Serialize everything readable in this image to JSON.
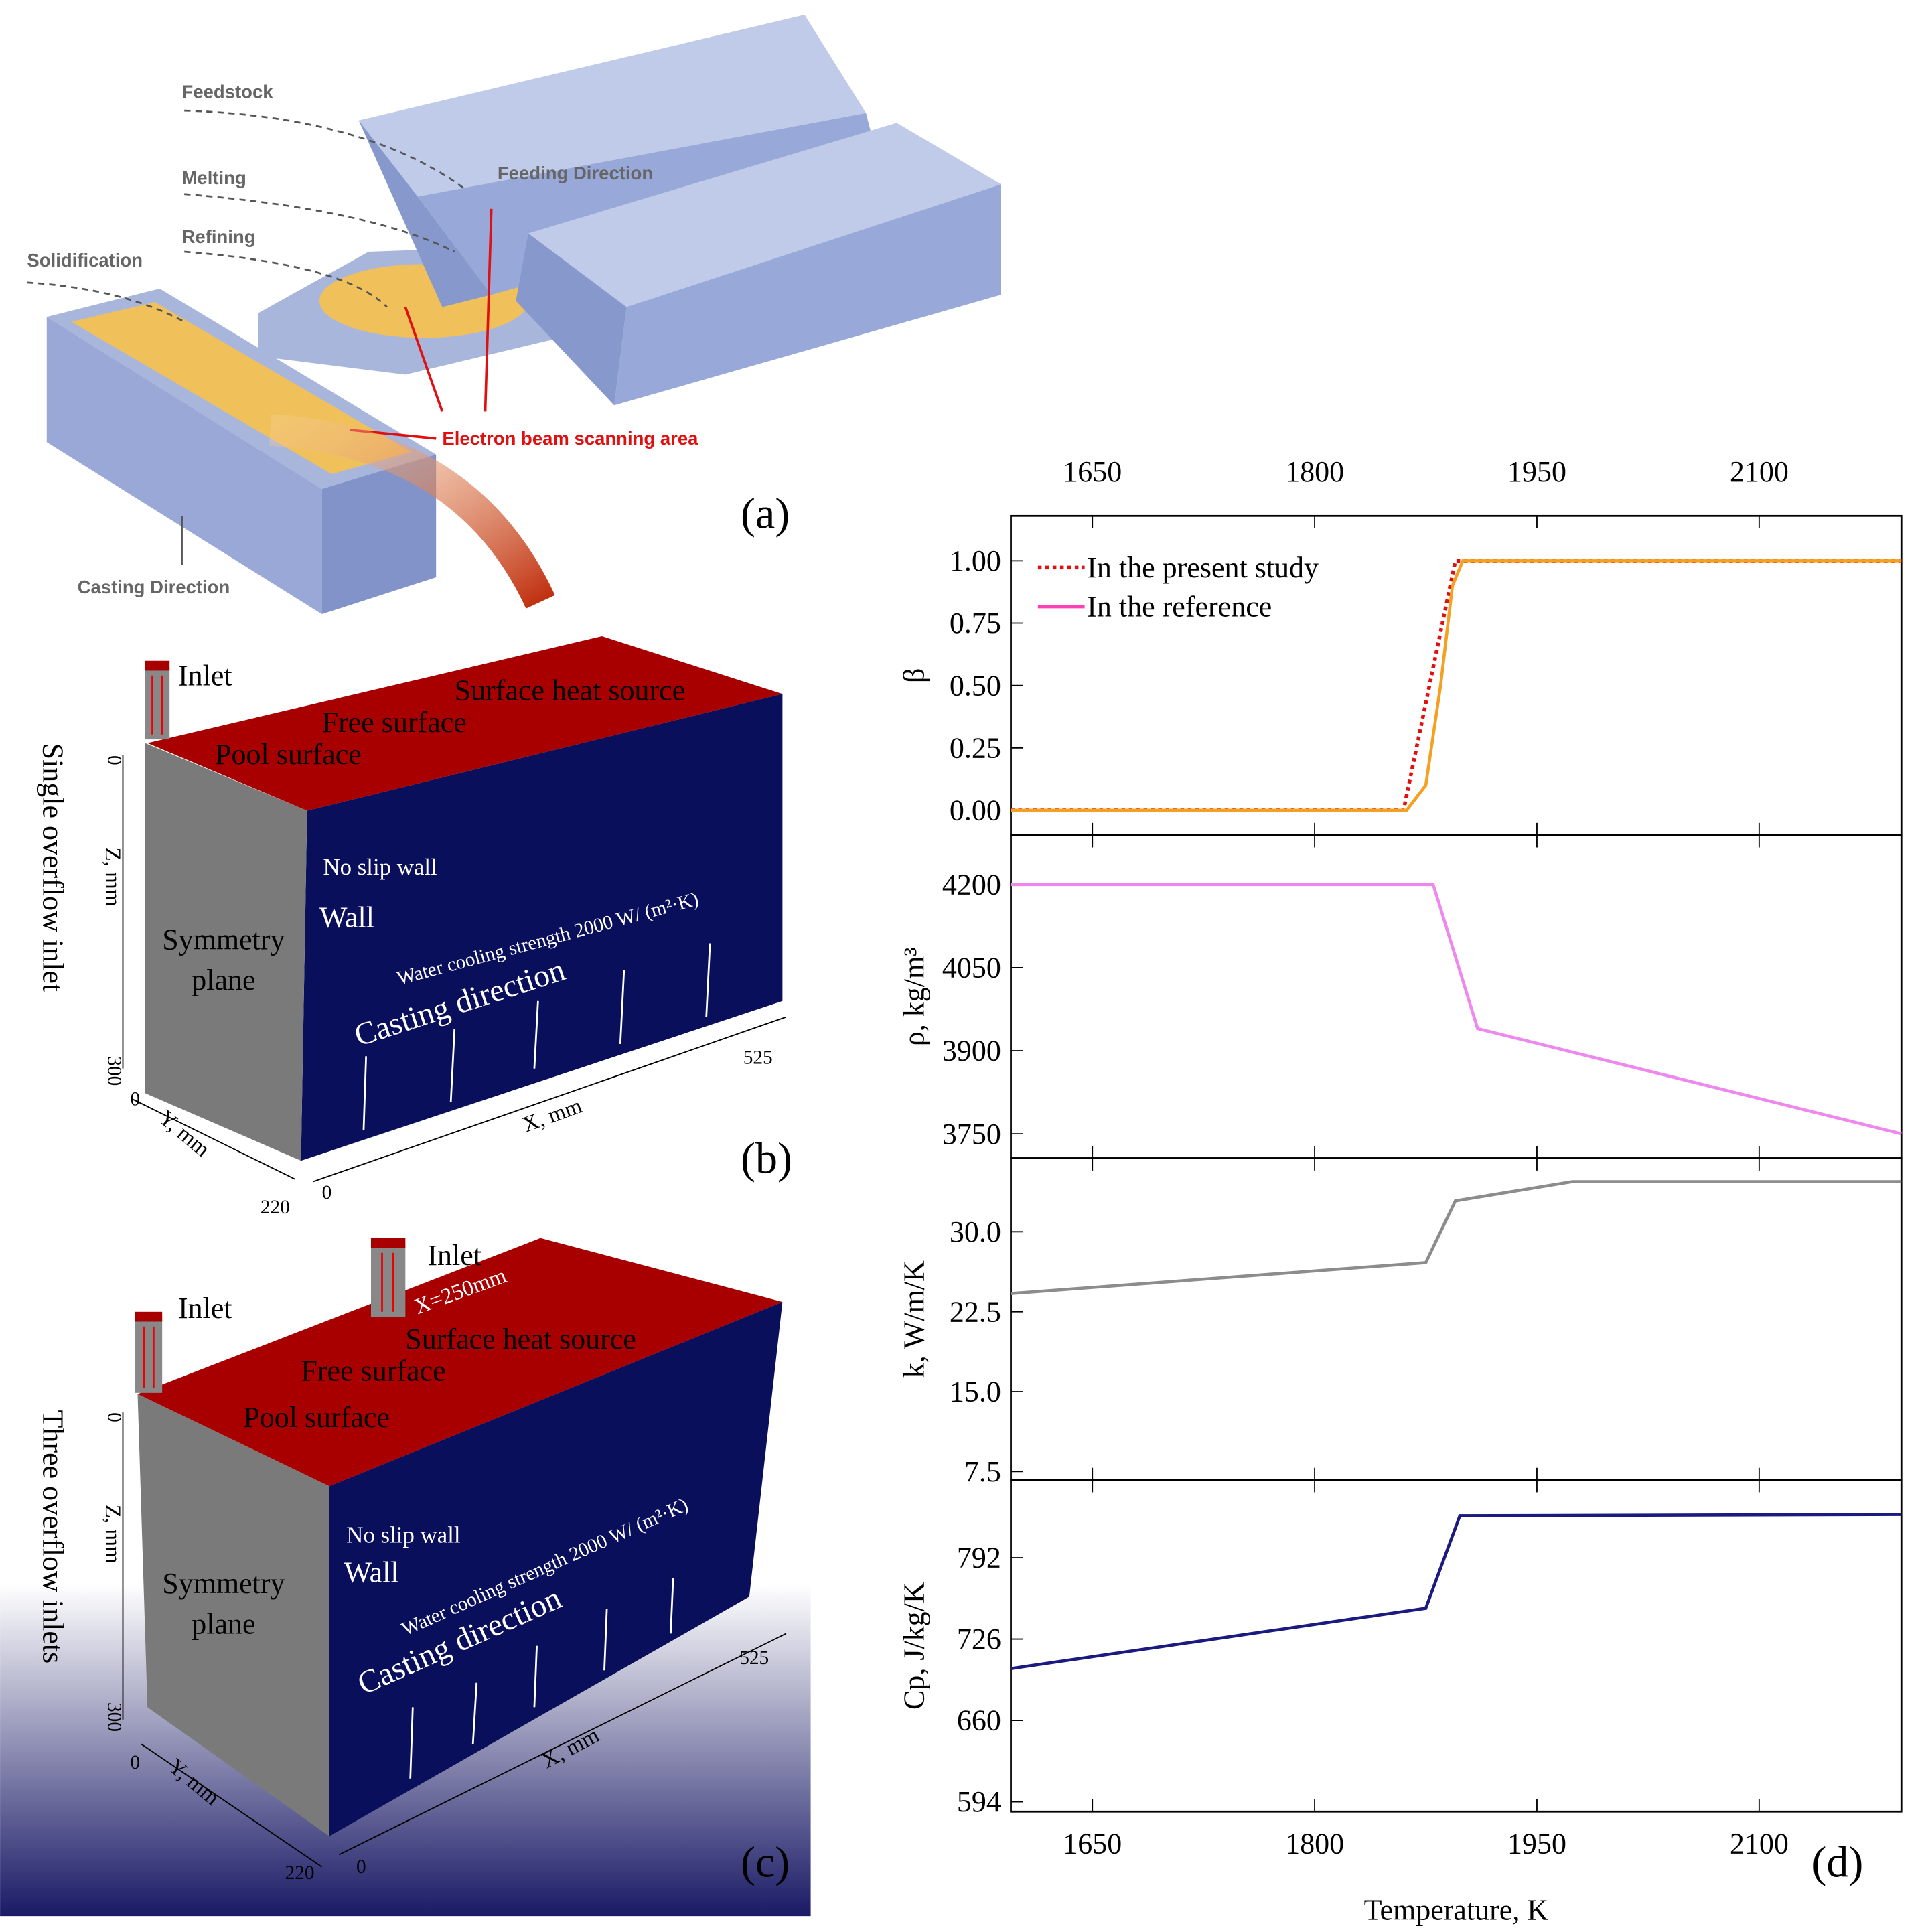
{
  "panel_a": {
    "feedstock": "Feedstock",
    "melting": "Melting",
    "refining": "Refining",
    "solidification": "Solidification",
    "feeding": "Feeding Direction",
    "beam": "Electron beam scanning area",
    "casting": "Casting Direction",
    "tag": "(a)"
  },
  "panel_b": {
    "inlet": "Inlet",
    "heat": "Surface heat source",
    "free": "Free surface",
    "pool": "Pool surface",
    "noslip": "No slip wall",
    "wall": "Wall",
    "cooling": "Water cooling strength  2000 W/ (m²·K)",
    "casting": "Casting direction",
    "symmetry": [
      "Symmetry",
      "plane"
    ],
    "side": "Single overflow inlet",
    "z_axis": "Z, mm",
    "y_axis": "Y, mm",
    "x_axis": "X, mm",
    "z_ticks": [
      "0",
      "300"
    ],
    "y_ticks": [
      "0",
      "220"
    ],
    "x_ticks": [
      "0",
      "525"
    ],
    "tag": "(b)"
  },
  "panel_c": {
    "inlet_left": "Inlet",
    "inlet_mid": "Inlet",
    "position": "X=250mm",
    "heat": "Surface heat source",
    "free": "Free surface",
    "pool": "Pool surface",
    "noslip": "No slip wall",
    "wall": "Wall",
    "cooling": "Water cooling strength  2000 W/ (m²·K)",
    "casting": "Casting direction",
    "symmetry": [
      "Symmetry",
      "plane"
    ],
    "side": "Three overflow inlets",
    "z_axis": "Z, mm",
    "y_axis": "Y, mm",
    "x_axis": "X, mm",
    "z_ticks": [
      "0",
      "300"
    ],
    "y_ticks": [
      "0",
      "220"
    ],
    "x_ticks": [
      "0",
      "525"
    ],
    "tag": "(c)"
  },
  "panel_d": {
    "tag": "(d)"
  },
  "chart_data": [
    {
      "type": "line",
      "ylabel": "β",
      "xlim": [
        1595,
        2196
      ],
      "xticks": [
        1650,
        1800,
        1950,
        2100
      ],
      "ylim": [
        -0.1,
        1.18
      ],
      "yticks": [
        {
          "value": 0,
          "label": "0.00"
        },
        {
          "value": 0.25,
          "label": "0.25"
        },
        {
          "value": 0.5,
          "label": "0.50"
        },
        {
          "value": 0.75,
          "label": "0.75"
        },
        {
          "value": 1,
          "label": "1.00"
        }
      ],
      "legend": "upper left",
      "series": [
        {
          "name": "In the present study",
          "color": "#e01010",
          "dash": "dotted",
          "x": [
            1595,
            1860,
            1895,
            2196
          ],
          "values": [
            0,
            0,
            1,
            1
          ]
        },
        {
          "name": "In the reference",
          "color": "#f5a020",
          "legend_color": "#ff3fb4",
          "x": [
            1595,
            1862,
            1875,
            1885,
            1893,
            1900,
            2196
          ],
          "values": [
            0,
            0,
            0.1,
            0.5,
            0.9,
            1,
            1
          ]
        }
      ]
    },
    {
      "type": "line",
      "ylabel": "ρ, kg/m³",
      "xlim": [
        1595,
        2196
      ],
      "xticks": [
        1650,
        1800,
        1950,
        2100
      ],
      "ylim": [
        3706,
        4289
      ],
      "yticks": [
        3750,
        3900,
        4050,
        4200
      ],
      "series": [
        {
          "color": "#ee88ee",
          "x": [
            1595,
            1880,
            1910,
            2196
          ],
          "values": [
            4200,
            4200,
            3940,
            3750
          ]
        }
      ]
    },
    {
      "type": "line",
      "ylabel": "k, W/m/K",
      "xlim": [
        1595,
        2196
      ],
      "xticks": [
        1650,
        1800,
        1950,
        2100
      ],
      "ylim": [
        6.7,
        36.9
      ],
      "yticks": [
        {
          "value": 7.5,
          "label": "7.5"
        },
        {
          "value": 15,
          "label": "15.0"
        },
        {
          "value": 22.5,
          "label": "22.5"
        },
        {
          "value": 30,
          "label": "30.0"
        }
      ],
      "series": [
        {
          "color": "#8c8c8c",
          "x": [
            1595,
            1875,
            1895,
            1974,
            2196
          ],
          "values": [
            24.2,
            27.1,
            32.9,
            34.7,
            34.7
          ]
        }
      ]
    },
    {
      "type": "line",
      "ylabel": "Cp, J/kg/K",
      "xlabel": "Temperature, K",
      "xlim": [
        1595,
        2196
      ],
      "xticks": [
        1650,
        1800,
        1950,
        2100
      ],
      "ylim": [
        586,
        855
      ],
      "yticks": [
        594,
        660,
        726,
        792
      ],
      "series": [
        {
          "color": "#1a1a80",
          "x": [
            1595,
            1875,
            1898,
            2196
          ],
          "values": [
            702,
            751,
            826,
            827
          ]
        }
      ]
    }
  ]
}
